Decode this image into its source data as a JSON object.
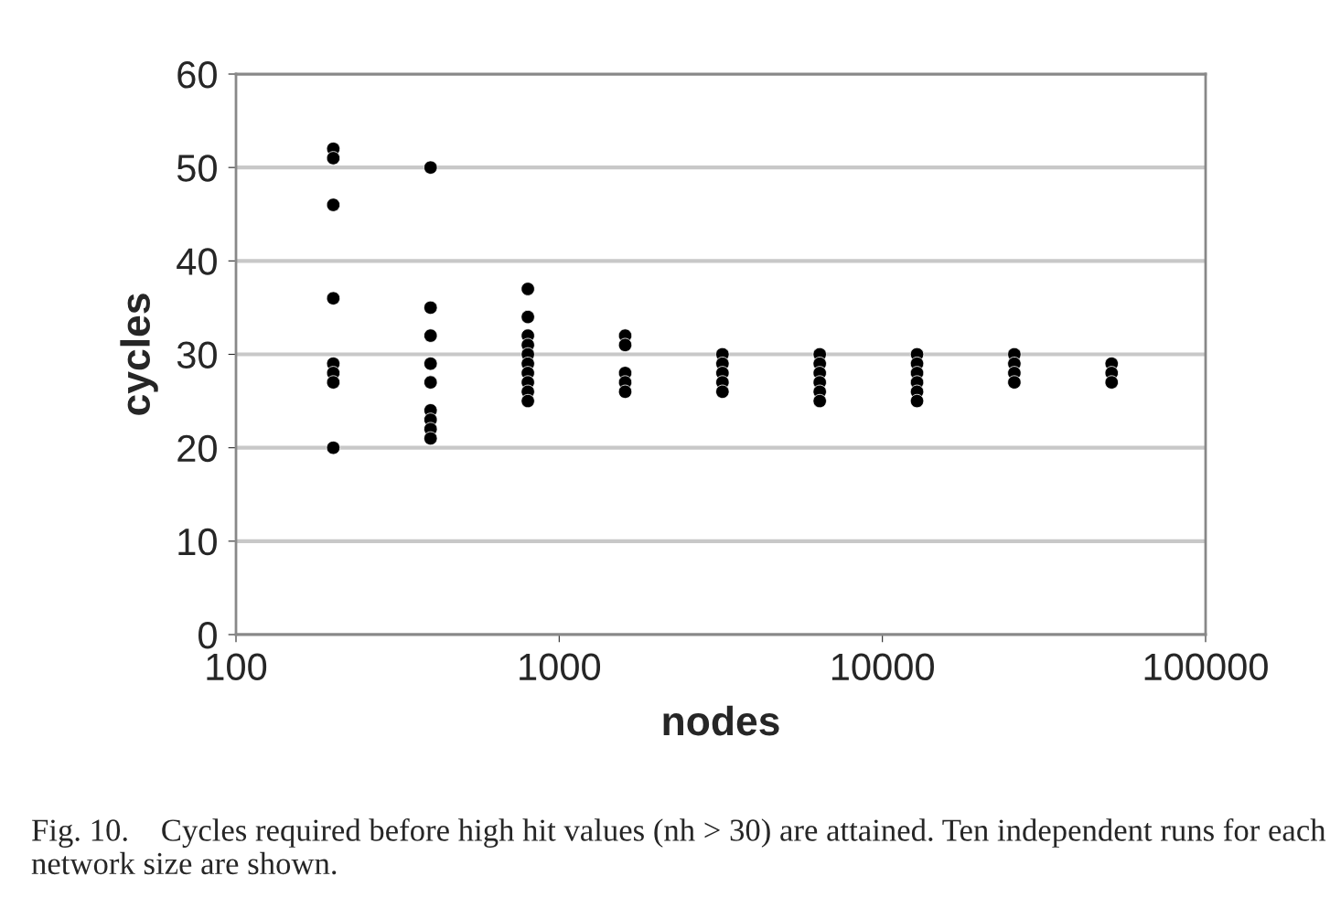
{
  "chart_data": {
    "type": "scatter",
    "xlabel": "nodes",
    "ylabel": "cycles",
    "log": "x",
    "xlim": [
      100,
      100000
    ],
    "xticks": [
      100,
      1000,
      10000,
      100000
    ],
    "ylim": [
      0,
      60
    ],
    "yticks": [
      0,
      10,
      20,
      30,
      40,
      50,
      60
    ],
    "grid": "y",
    "marker": "circle",
    "legend": false,
    "x": [
      200,
      200,
      200,
      200,
      200,
      200,
      200,
      200,
      400,
      400,
      400,
      400,
      400,
      400,
      400,
      400,
      400,
      800,
      800,
      800,
      800,
      800,
      800,
      800,
      800,
      800,
      800,
      1600,
      1600,
      1600,
      1600,
      1600,
      3200,
      3200,
      3200,
      3200,
      3200,
      6400,
      6400,
      6400,
      6400,
      6400,
      6400,
      12800,
      12800,
      12800,
      12800,
      12800,
      12800,
      25600,
      25600,
      25600,
      25600,
      51200,
      51200,
      51200
    ],
    "series": [
      {
        "color": "#000000",
        "values": [
          52,
          51,
          46,
          36,
          29,
          28,
          27,
          20,
          50,
          35,
          32,
          29,
          27,
          24,
          23,
          22,
          21,
          37,
          34,
          32,
          31,
          30,
          29,
          28,
          27,
          26,
          25,
          32,
          31,
          28,
          27,
          26,
          30,
          29,
          28,
          27,
          26,
          30,
          29,
          28,
          27,
          26,
          25,
          30,
          29,
          28,
          27,
          26,
          25,
          30,
          29,
          28,
          27,
          29,
          28,
          27
        ]
      }
    ],
    "annotations": [
      "Fig. 10.    Cycles required before high hit values (nh > 30) are attained. Ten independent runs for each network size are shown."
    ]
  }
}
